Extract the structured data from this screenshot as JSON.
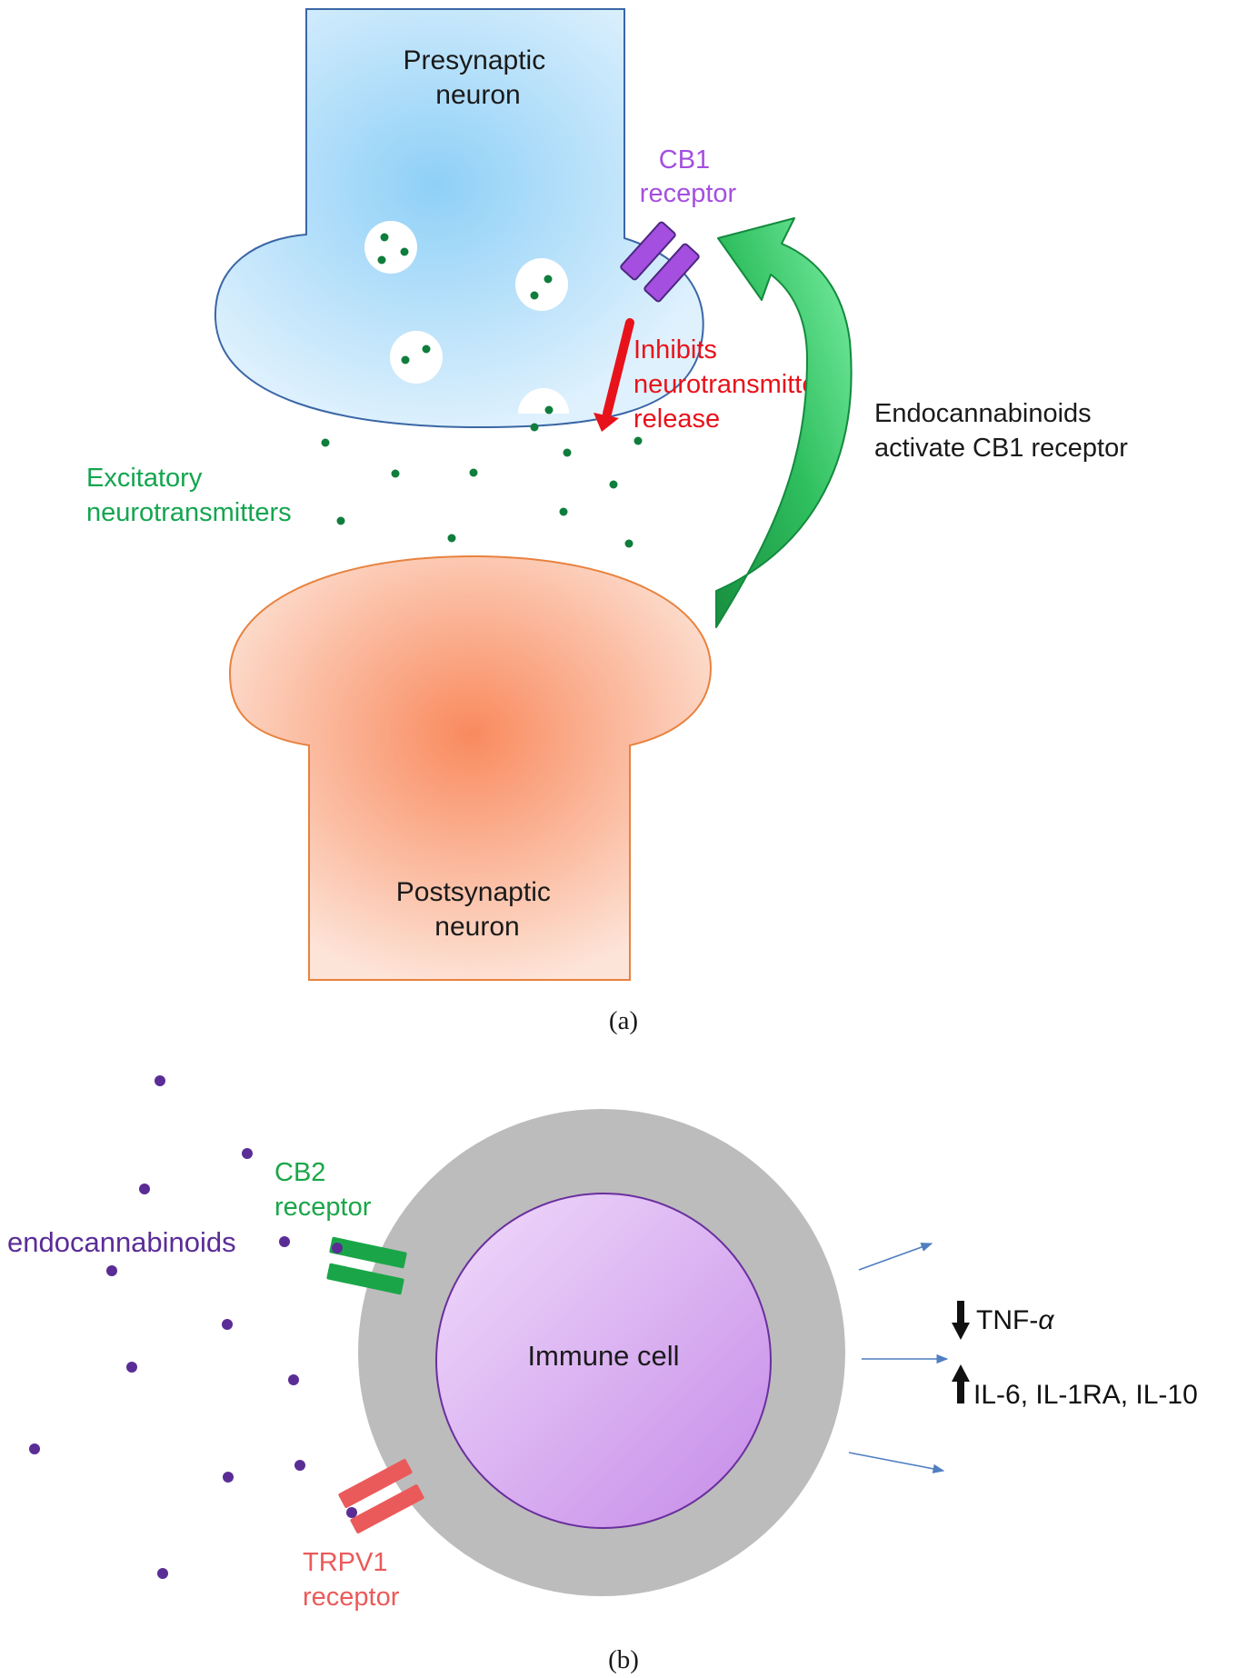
{
  "panel_a": {
    "presynaptic_label": [
      "Presynaptic",
      "neuron"
    ],
    "postsynaptic_label": [
      "Postsynaptic",
      "neuron"
    ],
    "cb1_label": [
      "CB1",
      "receptor"
    ],
    "inhibits_label": [
      "Inhibits",
      "neurotransmitter",
      "release"
    ],
    "endo_activate_label": [
      "Endocannabinoids",
      "activate CB1 receptor"
    ],
    "excitatory_label": [
      "Excitatory",
      "neurotransmitters"
    ],
    "caption": "(a)"
  },
  "panel_b": {
    "endocannabinoids_label": "endocannabinoids",
    "cb2_label": [
      "CB2",
      "receptor"
    ],
    "trpv1_label": [
      "TRPV1",
      "receptor"
    ],
    "immune_cell_label": "Immune cell",
    "tnf_label": "TNF-",
    "alpha": "α",
    "il_label": "IL-6, IL-1RA, IL-10",
    "caption": "(b)"
  },
  "colors": {
    "presynaptic_fill": "#bfe3fb",
    "postsynaptic_fill": "#fbbfa5",
    "cb1": "#a44fe0",
    "inhibit_red": "#e8121a",
    "arrow_green": "#1fae4f",
    "excitatory_green": "#14a550",
    "dot_green": "#0f7d3c",
    "dot_purple": "#5a2d96",
    "cb2_green": "#1aa648",
    "trpv1_red": "#eb5a5a",
    "cell_grey": "#bcbcbc",
    "cell_inner": "#d6a8f0",
    "small_arrow_blue": "#4f7fc0"
  }
}
